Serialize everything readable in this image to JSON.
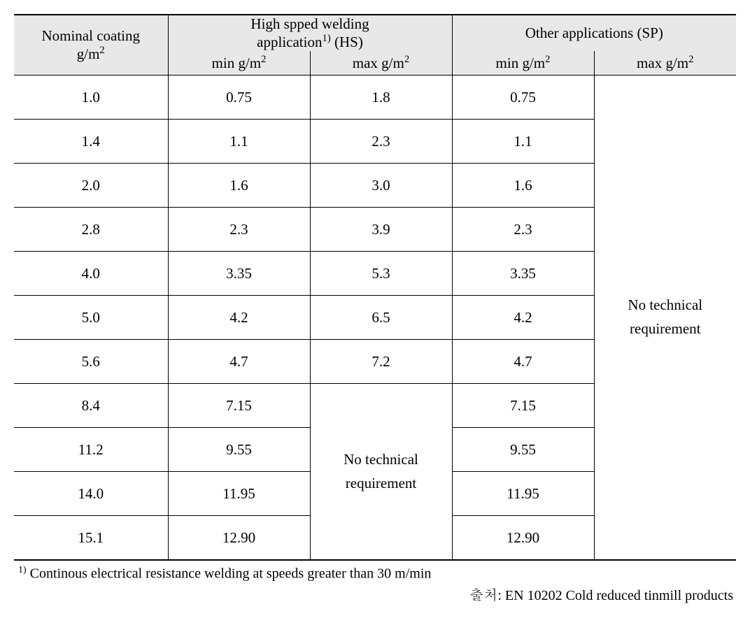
{
  "header": {
    "nominal_line1": "Nominal coating",
    "nominal_line2": "g/m",
    "hs_group_line1": "High spped welding",
    "hs_group_line2_prefix": "application",
    "hs_group_line2_suffix": " (HS)",
    "sp_group": "Other applications (SP)",
    "sub_min_prefix": "min g/m",
    "sub_max_prefix": "max  g/m",
    "superscript_2": "2",
    "footnote_ref": "1)"
  },
  "rows": [
    {
      "nominal": "1.0",
      "hs_min": "0.75",
      "hs_max": "1.8",
      "sp_min": "0.75"
    },
    {
      "nominal": "1.4",
      "hs_min": "1.1",
      "hs_max": "2.3",
      "sp_min": "1.1"
    },
    {
      "nominal": "2.0",
      "hs_min": "1.6",
      "hs_max": "3.0",
      "sp_min": "1.6"
    },
    {
      "nominal": "2.8",
      "hs_min": "2.3",
      "hs_max": "3.9",
      "sp_min": "2.3"
    },
    {
      "nominal": "4.0",
      "hs_min": "3.35",
      "hs_max": "5.3",
      "sp_min": "3.35"
    },
    {
      "nominal": "5.0",
      "hs_min": "4.2",
      "hs_max": "6.5",
      "sp_min": "4.2"
    },
    {
      "nominal": "5.6",
      "hs_min": "4.7",
      "hs_max": "7.2",
      "sp_min": "4.7"
    },
    {
      "nominal": "8.4",
      "hs_min": "7.15",
      "sp_min": "7.15"
    },
    {
      "nominal": "11.2",
      "hs_min": "9.55",
      "sp_min": "9.55"
    },
    {
      "nominal": "14.0",
      "hs_min": "11.95",
      "sp_min": "11.95"
    },
    {
      "nominal": "15.1",
      "hs_min": "12.90",
      "sp_min": "12.90"
    }
  ],
  "merged": {
    "no_tech_line1": "No technical",
    "no_tech_line2": "requirement"
  },
  "footnote": " Continous electrical resistance welding at speeds greater than 30 m/min",
  "footnote_marker": "1)",
  "source": "출처: EN 10202 Cold reduced tinmill products"
}
